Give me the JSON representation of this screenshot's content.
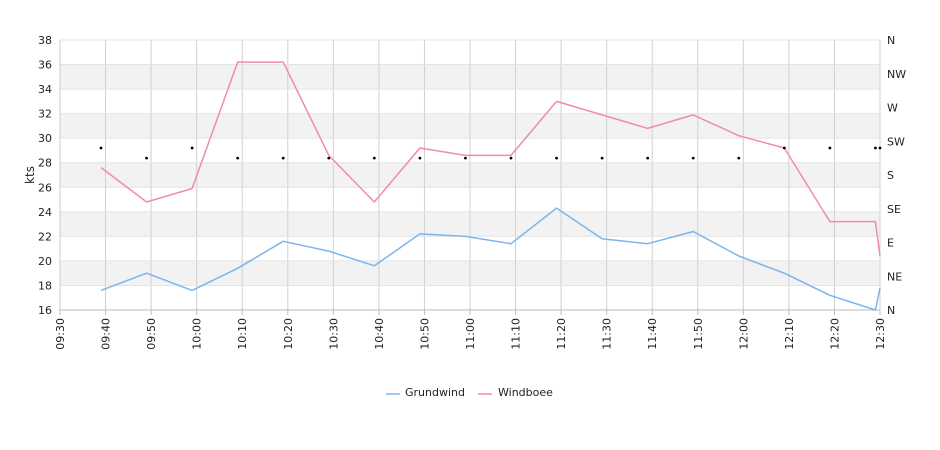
{
  "chart_data": {
    "type": "line",
    "title": "",
    "ylabel": "kts",
    "ylim": [
      16,
      38
    ],
    "yticks": [
      16,
      18,
      20,
      22,
      24,
      26,
      28,
      30,
      32,
      34,
      36,
      38
    ],
    "x_ticks": [
      "09:30",
      "09:40",
      "09:50",
      "10:00",
      "10:10",
      "10:20",
      "10:30",
      "10:40",
      "10:50",
      "11:00",
      "11:10",
      "11:20",
      "11:30",
      "11:40",
      "11:50",
      "12:00",
      "12:10",
      "12:20",
      "12:30"
    ],
    "x_range": [
      "09:30",
      "12:30"
    ],
    "right_axis": {
      "label": "",
      "ticks": [
        "N",
        "NE",
        "E",
        "SE",
        "S",
        "SW",
        "W",
        "NW",
        "N"
      ]
    },
    "legend_position": "bottom-center",
    "grid": true,
    "series": [
      {
        "name": "Grundwind",
        "color": "#7cb5ec",
        "x": [
          "09:39",
          "09:49",
          "09:59",
          "10:09",
          "10:19",
          "10:29",
          "10:39",
          "10:49",
          "10:59",
          "11:09",
          "11:19",
          "11:29",
          "11:39",
          "11:49",
          "11:59",
          "12:09",
          "12:19",
          "12:29",
          "12:30"
        ],
        "values": [
          17.6,
          19.0,
          17.6,
          19.4,
          21.6,
          20.8,
          19.6,
          22.2,
          22.0,
          21.4,
          24.3,
          21.8,
          21.4,
          22.4,
          20.4,
          19.0,
          17.2,
          16.0,
          17.8
        ]
      },
      {
        "name": "Windboee",
        "color": "#f288b8",
        "x": [
          "09:39",
          "09:49",
          "09:59",
          "10:09",
          "10:19",
          "10:29",
          "10:39",
          "10:49",
          "10:59",
          "11:09",
          "11:19",
          "11:29",
          "11:39",
          "11:49",
          "11:59",
          "12:09",
          "12:19",
          "12:29",
          "12:30"
        ],
        "values": [
          27.6,
          24.8,
          25.9,
          36.2,
          36.2,
          28.6,
          24.8,
          29.2,
          28.6,
          28.6,
          33.0,
          31.9,
          30.8,
          31.9,
          30.2,
          29.2,
          23.2,
          23.2,
          20.4
        ]
      },
      {
        "name": "",
        "type": "scatter",
        "color": "#000000",
        "axis": "right",
        "x": [
          "09:39",
          "09:49",
          "09:59",
          "10:09",
          "10:19",
          "10:29",
          "10:39",
          "10:49",
          "10:59",
          "11:09",
          "11:19",
          "11:29",
          "11:39",
          "11:49",
          "11:59",
          "12:09",
          "12:19",
          "12:29",
          "12:30"
        ],
        "values": [
          4.8,
          4.5,
          4.8,
          4.5,
          4.5,
          4.5,
          4.5,
          4.5,
          4.5,
          4.5,
          4.5,
          4.5,
          4.5,
          4.5,
          4.5,
          4.8,
          4.8,
          4.8,
          4.8
        ]
      }
    ]
  }
}
